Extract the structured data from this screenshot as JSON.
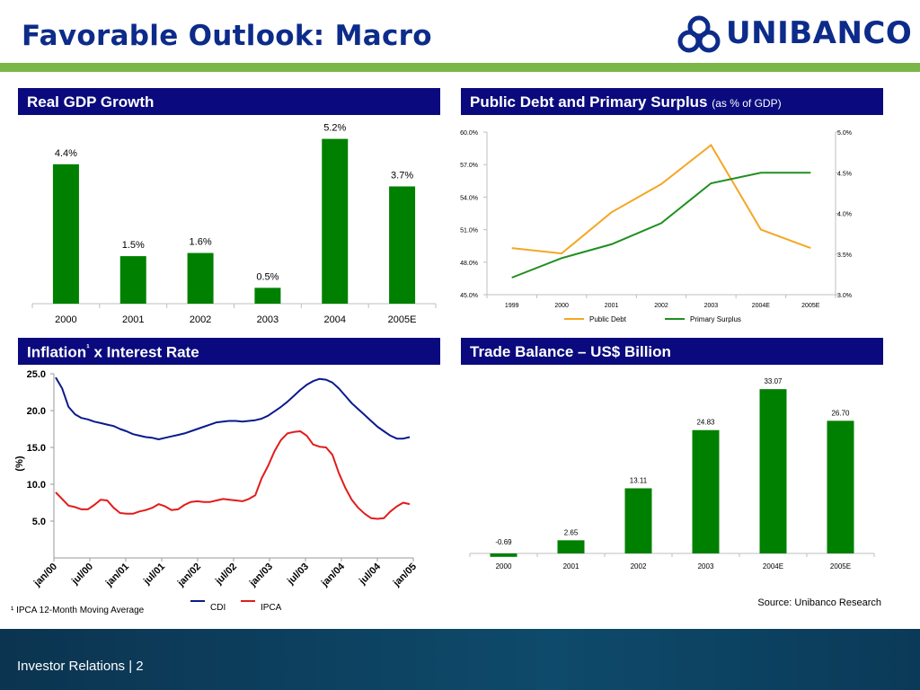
{
  "page": {
    "title": "Favorable Outlook: Macro",
    "logo_text": "UNIBANCO",
    "footer_text": "Investor Relations | 2",
    "footnote": "¹ IPCA 12-Month Moving Average",
    "source": "Source: Unibanco Research"
  },
  "colors": {
    "navy": "#0a0a7e",
    "title_blue": "#0d2b8a",
    "bar_green": "#008000",
    "rule_green": "#7ab648",
    "orange": "#f5a623",
    "line_green": "#1f8f1f",
    "cdi": "#0a1a8c",
    "ipca": "#e21b1b"
  },
  "panels": {
    "gdp": {
      "title": "Real GDP Growth"
    },
    "debt": {
      "title": "Public Debt and Primary Surplus",
      "subtitle": "(as % of GDP)"
    },
    "inflation": {
      "title": "Inflation",
      "title_sup": "¹",
      "title_rest": " x Interest Rate"
    },
    "trade": {
      "title": "Trade Balance – US$ Billion"
    }
  },
  "chart_data": [
    {
      "id": "gdp",
      "type": "bar",
      "categories": [
        "2000",
        "2001",
        "2002",
        "2003",
        "2004",
        "2005E"
      ],
      "values": [
        4.4,
        1.5,
        1.6,
        0.5,
        5.2,
        3.7
      ],
      "value_labels": [
        "4.4%",
        "1.5%",
        "1.6%",
        "0.5%",
        "5.2%",
        "3.7%"
      ],
      "ylim": [
        0,
        5.5
      ]
    },
    {
      "id": "debt",
      "type": "line",
      "x": [
        "1999",
        "2000",
        "2001",
        "2002",
        "2003",
        "2004E",
        "2005E"
      ],
      "y_left_ticks": [
        "60.0%",
        "57.0%",
        "54.0%",
        "51.0%",
        "48.0%",
        "45.0%"
      ],
      "y_left_lim": [
        45,
        60
      ],
      "y_right_ticks": [
        "5.0%",
        "4.5%",
        "4.0%",
        "3.5%",
        "3.0%"
      ],
      "y_right_lim": [
        3.0,
        5.0
      ],
      "series": [
        {
          "name": "Public Debt",
          "axis": "left",
          "values": [
            49.3,
            48.8,
            52.6,
            55.2,
            58.8,
            51.0,
            49.3
          ]
        },
        {
          "name": "Primary Surplus",
          "axis": "right",
          "values": [
            3.21,
            3.45,
            3.62,
            3.88,
            4.37,
            4.5,
            4.5
          ]
        }
      ],
      "legend_position": "bottom"
    },
    {
      "id": "inflation",
      "type": "line",
      "ylabel": "(%)",
      "y_ticks": [
        "25.0",
        "20.0",
        "15.0",
        "10.0",
        "5.0"
      ],
      "ylim": [
        0,
        25
      ],
      "x_ticks": [
        "jan/00",
        "jul/00",
        "jan/01",
        "jul/01",
        "jan/02",
        "jul/02",
        "jan/03",
        "jul/03",
        "jan/04",
        "jul/04",
        "jan/05"
      ],
      "series": [
        {
          "name": "CDI",
          "values": [
            24.5,
            23.0,
            20.5,
            19.5,
            19.0,
            18.8,
            18.5,
            18.3,
            18.1,
            17.9,
            17.5,
            17.2,
            16.8,
            16.6,
            16.4,
            16.3,
            16.1,
            16.3,
            16.5,
            16.7,
            16.9,
            17.2,
            17.5,
            17.8,
            18.1,
            18.4,
            18.5,
            18.6,
            18.6,
            18.5,
            18.6,
            18.7,
            18.9,
            19.3,
            19.9,
            20.5,
            21.2,
            22.0,
            22.8,
            23.5,
            24.0,
            24.3,
            24.2,
            23.8,
            23.0,
            22.0,
            21.0,
            20.2,
            19.4,
            18.6,
            17.8,
            17.2,
            16.6,
            16.2,
            16.2,
            16.4
          ]
        },
        {
          "name": "IPCA",
          "values": [
            8.9,
            8.0,
            7.1,
            6.9,
            6.6,
            6.6,
            7.2,
            7.9,
            7.8,
            6.8,
            6.1,
            6.0,
            6.0,
            6.3,
            6.5,
            6.8,
            7.3,
            7.0,
            6.5,
            6.6,
            7.2,
            7.6,
            7.7,
            7.6,
            7.6,
            7.8,
            8.0,
            7.9,
            7.8,
            7.7,
            8.0,
            8.5,
            10.8,
            12.5,
            14.5,
            16.0,
            16.9,
            17.1,
            17.2,
            16.6,
            15.4,
            15.1,
            15.0,
            14.0,
            11.5,
            9.5,
            7.9,
            6.8,
            6.0,
            5.4,
            5.3,
            5.4,
            6.3,
            7.0,
            7.5,
            7.3
          ]
        }
      ],
      "legend_position": "bottom"
    },
    {
      "id": "trade",
      "type": "bar",
      "categories": [
        "2000",
        "2001",
        "2002",
        "2003",
        "2004E",
        "2005E"
      ],
      "values": [
        -0.69,
        2.65,
        13.11,
        24.83,
        33.07,
        26.7
      ],
      "value_labels": [
        "-0.69",
        "2.65",
        "13.11",
        "24.83",
        "33.07",
        "26.70"
      ],
      "ylim": [
        -1,
        34
      ]
    }
  ]
}
